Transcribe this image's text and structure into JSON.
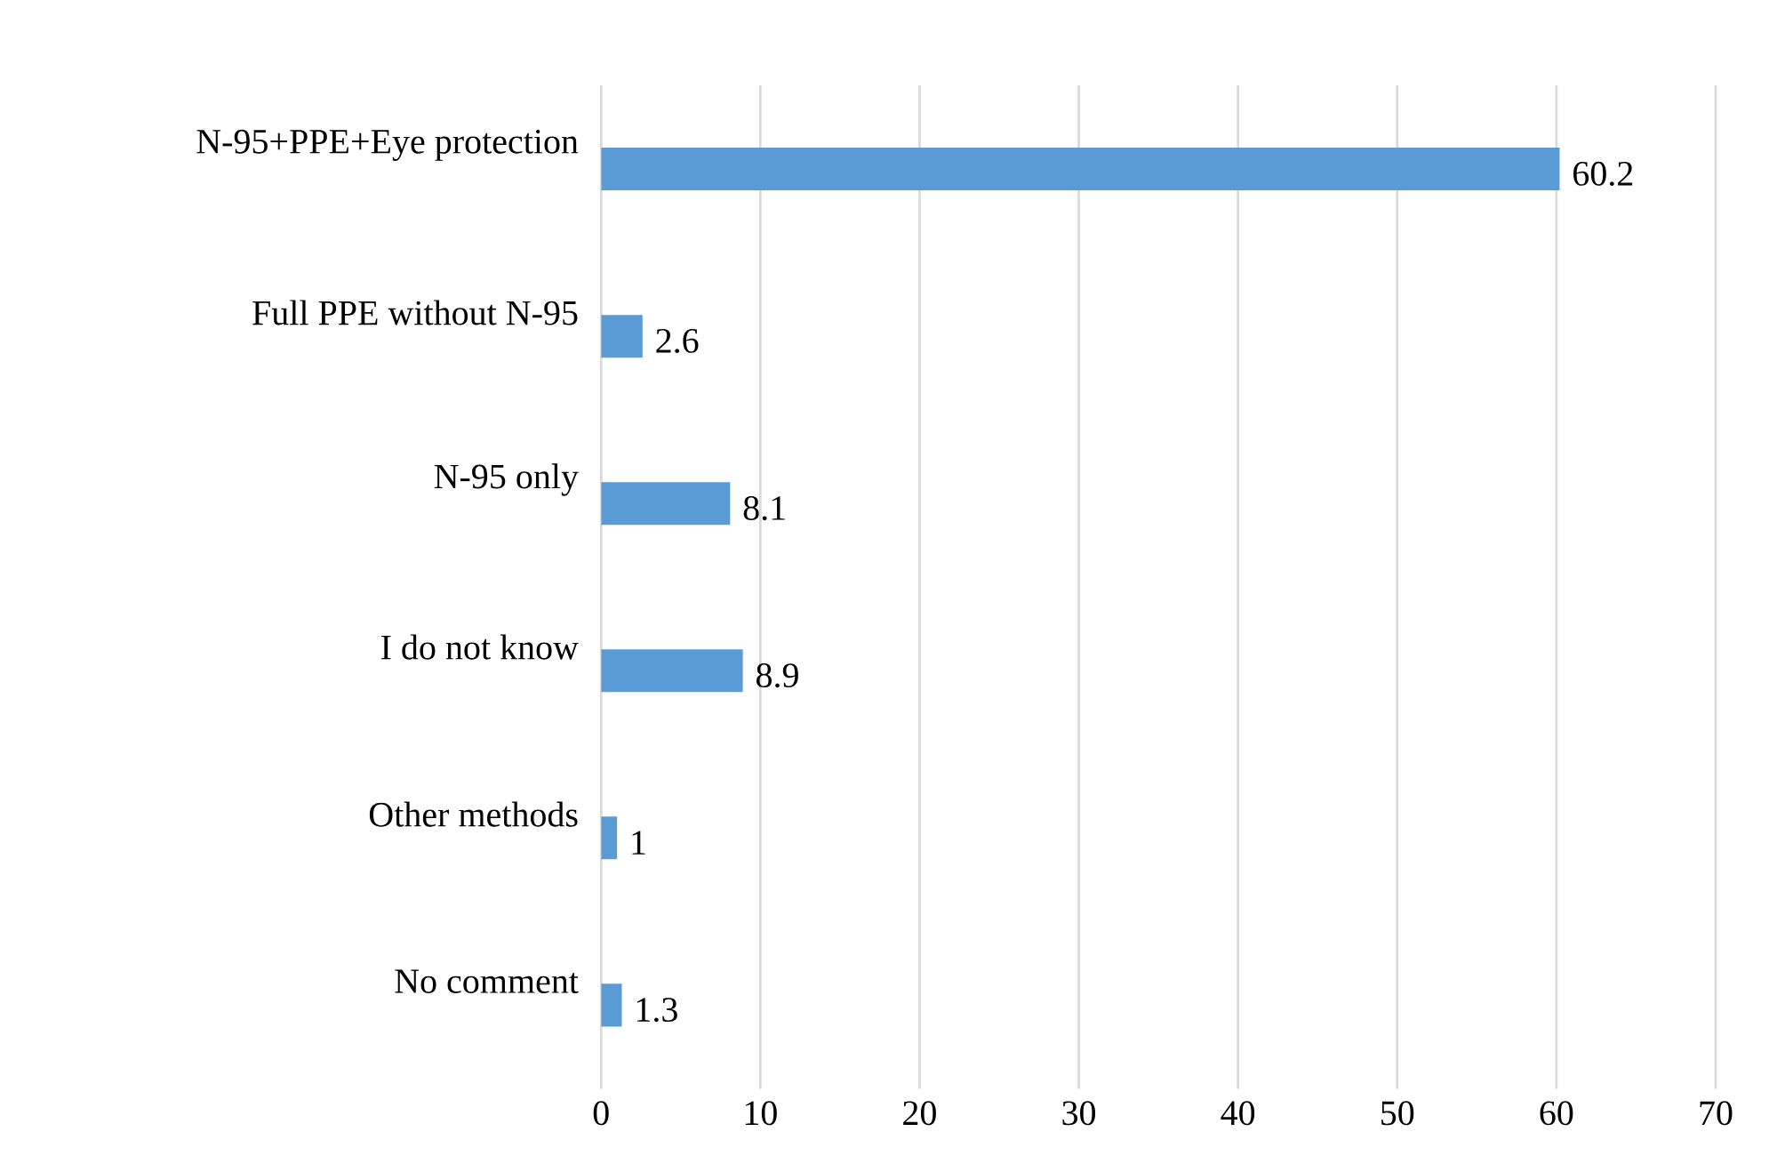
{
  "chart_data": {
    "type": "bar",
    "orientation": "horizontal",
    "categories": [
      "N-95+PPE+Eye protection",
      "Full PPE without N-95",
      "N-95 only",
      "I do not know",
      "Other methods",
      "No comment"
    ],
    "values": [
      60.2,
      2.6,
      8.1,
      8.9,
      1,
      1.3
    ],
    "color": "#5b9bd5",
    "xlim": [
      0,
      70
    ],
    "xticks": [
      0,
      10,
      20,
      30,
      40,
      50,
      60,
      70
    ],
    "grid": "x",
    "data_labels": true
  }
}
